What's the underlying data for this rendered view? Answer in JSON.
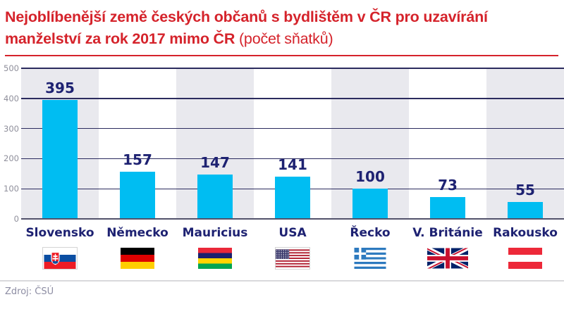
{
  "header": {
    "title_line1": "Nejoblíbenější země českých občanů s bydlištěm v ČR pro uzavírání",
    "title_line2_bold": "manželství za rok 2017 mimo ČR",
    "title_suffix": " (počet sňatků)"
  },
  "chart_data": {
    "type": "bar",
    "title": "Nejoblíbenější země českých občanů s bydlištěm v ČR pro uzavírání manželství za rok 2017 mimo ČR (počet sňatků)",
    "categories": [
      "Slovensko",
      "Německo",
      "Mauricius",
      "USA",
      "Řecko",
      "V. Británie",
      "Rakousko"
    ],
    "values": [
      395,
      157,
      147,
      141,
      100,
      73,
      55
    ],
    "flags": [
      "slovakia-flag",
      "germany-flag",
      "mauritius-flag",
      "usa-flag",
      "greece-flag",
      "uk-flag",
      "austria-flag"
    ],
    "xlabel": "",
    "ylabel": "",
    "ylim": [
      0,
      500
    ],
    "yticks": [
      0,
      100,
      200,
      300,
      400,
      500
    ],
    "grid": true,
    "legend": false,
    "band_pattern": "alternating-gray-behind-odd-columns"
  },
  "footer": {
    "source": "Zdroj: ČSÚ"
  },
  "colors": {
    "title_red": "#d5232b",
    "bar_cyan": "#00bdf2",
    "label_navy": "#1e2272",
    "grid_navy": "#2b2b5e",
    "band_gray": "#e9e9ee",
    "tick_gray": "#8f8f9b",
    "source_gray": "#8d8da3"
  }
}
